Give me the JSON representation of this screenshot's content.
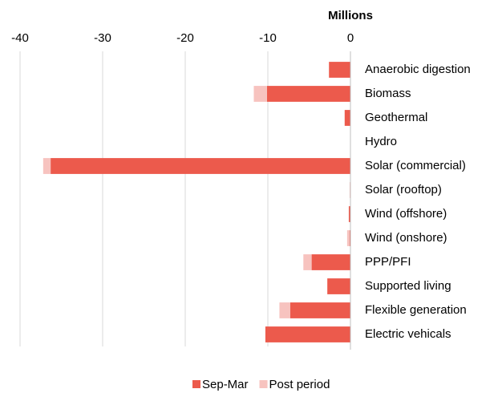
{
  "chart_data": {
    "type": "stacked-barh",
    "axis_label": "Millions",
    "categories": [
      "Anaerobic digestion",
      "Biomass",
      "Geothermal",
      "Hydro",
      "Solar (commercial)",
      "Solar (rooftop)",
      "Wind (offshore)",
      "Wind (onshore)",
      "PPP/PFI",
      "Supported living",
      "Flexible generation",
      "Electric vehicals"
    ],
    "series": [
      {
        "name": "Sep-Mar",
        "color": "#ec5a4c",
        "values": [
          -2.6,
          -10.1,
          -0.7,
          0,
          -36.3,
          0,
          -0.2,
          -0.1,
          -4.7,
          -2.8,
          -7.3,
          -10.3
        ]
      },
      {
        "name": "Post period",
        "color": "#f7c3bf",
        "values": [
          0,
          -1.6,
          0,
          0,
          -0.9,
          -0.1,
          0,
          -0.3,
          -1.0,
          0,
          -1.3,
          0
        ]
      }
    ],
    "xlim": [
      -40,
      0
    ],
    "xticks": [
      -40,
      -30,
      -20,
      -10,
      0
    ],
    "grid": true,
    "legend": "bottom"
  }
}
